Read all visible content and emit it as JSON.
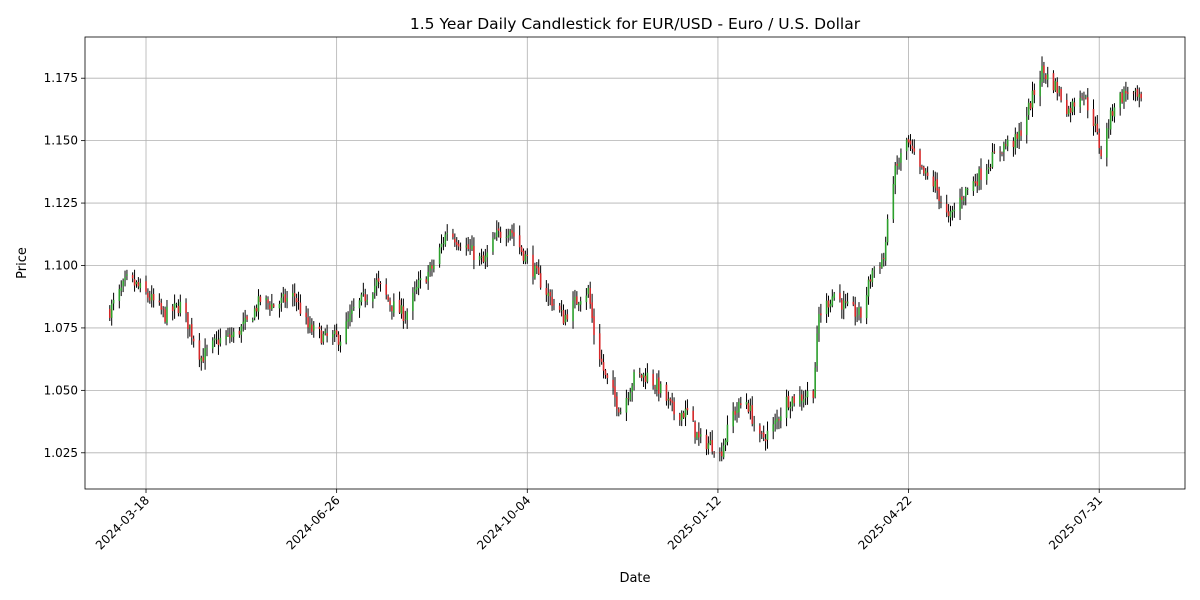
{
  "chart_data": {
    "type": "candlestick",
    "title": "1.5 Year Daily Candlestick for EUR/USD - Euro / U.S. Dollar",
    "xlabel": "Date",
    "ylabel": "Price",
    "x_range": [
      "2024-02-15",
      "2025-09-14"
    ],
    "ylim": [
      1.0105,
      1.1915
    ],
    "grid": true,
    "colors": {
      "up": "#2ca02c",
      "down": "#d62728",
      "wick": "#000000",
      "grid": "#b0b0b0"
    },
    "x_ticks": [
      "2024-03-18",
      "2024-06-26",
      "2024-10-04",
      "2025-01-12",
      "2025-04-22",
      "2025-07-31"
    ],
    "y_ticks": [
      "1.025",
      "1.050",
      "1.075",
      "1.100",
      "1.125",
      "1.150",
      "1.175"
    ],
    "start_date": "2024-02-28",
    "end_date": "2025-08-22",
    "anchors": [
      [
        "2024-02-28",
        1.082
      ],
      [
        "2024-03-08",
        1.094
      ],
      [
        "2024-03-13",
        1.092
      ],
      [
        "2024-03-20",
        1.087
      ],
      [
        "2024-03-28",
        1.08
      ],
      [
        "2024-04-05",
        1.084
      ],
      [
        "2024-04-10",
        1.075
      ],
      [
        "2024-04-16",
        1.063
      ],
      [
        "2024-04-25",
        1.07
      ],
      [
        "2024-05-03",
        1.072
      ],
      [
        "2024-05-10",
        1.077
      ],
      [
        "2024-05-17",
        1.086
      ],
      [
        "2024-05-24",
        1.084
      ],
      [
        "2024-06-04",
        1.088
      ],
      [
        "2024-06-11",
        1.075
      ],
      [
        "2024-06-20",
        1.071
      ],
      [
        "2024-06-28",
        1.071
      ],
      [
        "2024-07-05",
        1.082
      ],
      [
        "2024-07-17",
        1.093
      ],
      [
        "2024-07-25",
        1.084
      ],
      [
        "2024-08-01",
        1.08
      ],
      [
        "2024-08-08",
        1.092
      ],
      [
        "2024-08-16",
        1.1
      ],
      [
        "2024-08-23",
        1.114
      ],
      [
        "2024-09-04",
        1.106
      ],
      [
        "2024-09-11",
        1.101
      ],
      [
        "2024-09-18",
        1.112
      ],
      [
        "2024-09-25",
        1.115
      ],
      [
        "2024-10-01",
        1.106
      ],
      [
        "2024-10-09",
        1.096
      ],
      [
        "2024-10-16",
        1.087
      ],
      [
        "2024-10-23",
        1.079
      ],
      [
        "2024-11-01",
        1.088
      ],
      [
        "2024-11-05",
        1.09
      ],
      [
        "2024-11-08",
        1.073
      ],
      [
        "2024-11-14",
        1.055
      ],
      [
        "2024-11-22",
        1.042
      ],
      [
        "2024-11-29",
        1.055
      ],
      [
        "2024-12-06",
        1.056
      ],
      [
        "2024-12-13",
        1.05
      ],
      [
        "2024-12-20",
        1.041
      ],
      [
        "2024-12-27",
        1.041
      ],
      [
        "2025-01-02",
        1.03
      ],
      [
        "2025-01-10",
        1.028
      ],
      [
        "2025-01-13",
        1.024
      ],
      [
        "2025-01-20",
        1.041
      ],
      [
        "2025-01-27",
        1.046
      ],
      [
        "2025-02-03",
        1.03
      ],
      [
        "2025-02-10",
        1.035
      ],
      [
        "2025-02-17",
        1.046
      ],
      [
        "2025-02-24",
        1.047
      ],
      [
        "2025-03-03",
        1.05
      ],
      [
        "2025-03-06",
        1.08
      ],
      [
        "2025-03-14",
        1.089
      ],
      [
        "2025-03-20",
        1.083
      ],
      [
        "2025-03-28",
        1.08
      ],
      [
        "2025-04-03",
        1.098
      ],
      [
        "2025-04-09",
        1.103
      ],
      [
        "2025-04-14",
        1.135
      ],
      [
        "2025-04-21",
        1.15
      ],
      [
        "2025-04-28",
        1.138
      ],
      [
        "2025-05-06",
        1.132
      ],
      [
        "2025-05-13",
        1.118
      ],
      [
        "2025-05-20",
        1.128
      ],
      [
        "2025-05-28",
        1.135
      ],
      [
        "2025-06-04",
        1.142
      ],
      [
        "2025-06-11",
        1.148
      ],
      [
        "2025-06-18",
        1.15
      ],
      [
        "2025-06-25",
        1.165
      ],
      [
        "2025-07-01",
        1.178
      ],
      [
        "2025-07-08",
        1.172
      ],
      [
        "2025-07-15",
        1.162
      ],
      [
        "2025-07-22",
        1.17
      ],
      [
        "2025-07-28",
        1.158
      ],
      [
        "2025-08-01",
        1.145
      ],
      [
        "2025-08-08",
        1.165
      ],
      [
        "2025-08-15",
        1.17
      ],
      [
        "2025-08-22",
        1.165
      ]
    ]
  }
}
